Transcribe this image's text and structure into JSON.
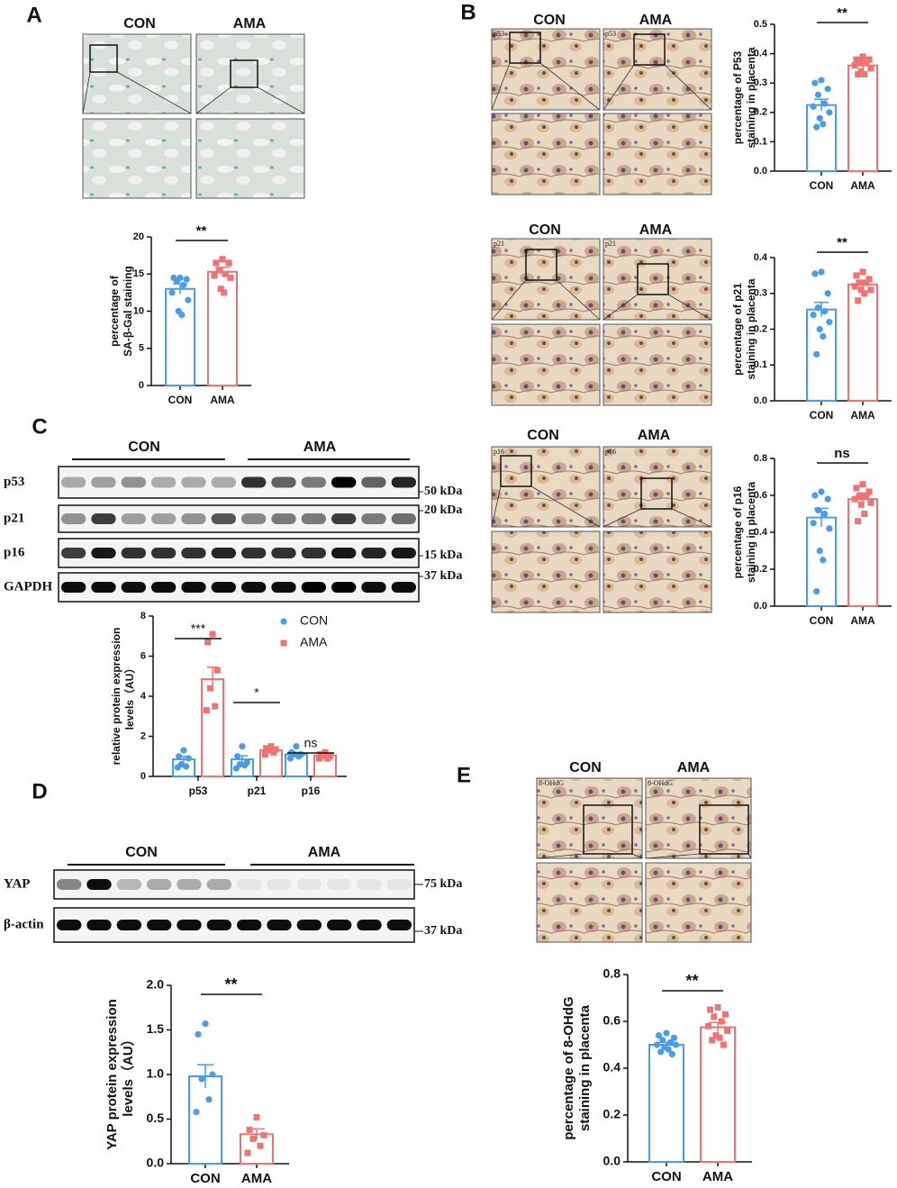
{
  "letters": [
    "A",
    "B",
    "C",
    "D",
    "E"
  ],
  "micrographs": [
    {
      "labels": [
        "CON",
        "AMA"
      ]
    },
    {
      "labels": [
        "CON",
        "AMA"
      ],
      "tag": "p53"
    },
    {
      "labels": [
        "CON",
        "AMA"
      ],
      "tag": "p21"
    },
    {
      "labels": [
        "CON",
        "AMA"
      ],
      "tag": "p16"
    },
    {
      "labels": [
        "CON",
        "AMA"
      ],
      "tag": "8-OHdG"
    }
  ],
  "blots": [
    {
      "groups": [
        "CON",
        "AMA"
      ],
      "rows": [
        {
          "label": "p53",
          "size": "50 kDa"
        },
        {
          "label": "p21",
          "size": "20 kDa"
        },
        {
          "label": "p16",
          "size": "15 kDa"
        },
        {
          "label": "GAPDH",
          "size": "37 kDa"
        }
      ]
    },
    {
      "groups": [
        "CON",
        "AMA"
      ],
      "rows": [
        {
          "label": "YAP",
          "size": "75 kDa"
        },
        {
          "label": "β-actin",
          "size": "37 kDa"
        }
      ]
    }
  ],
  "chart_data": [
    {
      "type": "bar",
      "ylabel": [
        "percentage of",
        "SA-β-Gal staining"
      ],
      "categories": [
        "CON",
        "AMA"
      ],
      "colors": [
        "#4a9be8",
        "#f07373"
      ],
      "values": [
        13.0,
        15.3
      ],
      "errors": [
        0.7,
        0.6
      ],
      "points": [
        [
          14.5,
          14.5,
          14.3,
          14.0,
          13.5,
          12.5,
          11.5,
          10.0,
          9.5
        ],
        [
          17.0,
          16.5,
          16.5,
          15.5,
          15.0,
          14.8,
          14.5,
          13.0,
          12.5
        ]
      ],
      "ylim": [
        0,
        20
      ],
      "yticks": [
        0,
        5,
        10,
        15,
        20
      ],
      "significance": "**"
    },
    {
      "type": "bar",
      "ylabel": [
        "percentage of P53",
        "staining in placenta"
      ],
      "categories": [
        "CON",
        "AMA"
      ],
      "colors": [
        "#4a9be8",
        "#f07373"
      ],
      "values": [
        0.225,
        0.36
      ],
      "errors": [
        0.02,
        0.01
      ],
      "points": [
        [
          0.31,
          0.3,
          0.28,
          0.26,
          0.23,
          0.22,
          0.2,
          0.18,
          0.16,
          0.15
        ],
        [
          0.39,
          0.38,
          0.38,
          0.37,
          0.37,
          0.36,
          0.35,
          0.34,
          0.33,
          0.33
        ]
      ],
      "ylim": [
        0,
        0.5
      ],
      "yticks": [
        {
          "value": 0,
          "label": "0.0"
        },
        0.1,
        0.2,
        0.3,
        0.4,
        0.5
      ],
      "significance": "**"
    },
    {
      "type": "bar",
      "ylabel": [
        "percentage of p21",
        "staining in placenta"
      ],
      "categories": [
        "CON",
        "AMA"
      ],
      "colors": [
        "#4a9be8",
        "#f07373"
      ],
      "values": [
        0.255,
        0.325
      ],
      "errors": [
        0.02,
        0.01
      ],
      "points": [
        [
          0.36,
          0.355,
          0.3,
          0.26,
          0.25,
          0.24,
          0.22,
          0.2,
          0.18,
          0.13
        ],
        [
          0.36,
          0.35,
          0.34,
          0.33,
          0.33,
          0.32,
          0.31,
          0.31,
          0.3,
          0.28
        ]
      ],
      "ylim": [
        0,
        0.4
      ],
      "yticks": [
        {
          "value": 0,
          "label": "0.0"
        },
        0.1,
        0.2,
        0.3,
        0.4
      ],
      "significance": "**"
    },
    {
      "type": "bar",
      "ylabel": [
        "percentage of p16",
        "staining in placenta"
      ],
      "categories": [
        "CON",
        "AMA"
      ],
      "colors": [
        "#4a9be8",
        "#f07373"
      ],
      "values": [
        0.48,
        0.58
      ],
      "errors": [
        0.05,
        0.02
      ],
      "points": [
        [
          0.62,
          0.6,
          0.58,
          0.52,
          0.5,
          0.45,
          0.42,
          0.3,
          0.25,
          0.08
        ],
        [
          0.66,
          0.64,
          0.62,
          0.6,
          0.6,
          0.58,
          0.56,
          0.55,
          0.5,
          0.46
        ]
      ],
      "ylim": [
        0,
        0.8
      ],
      "yticks": [
        {
          "value": 0,
          "label": "0.0"
        },
        0.2,
        0.4,
        0.6,
        0.8
      ],
      "significance": "ns"
    },
    {
      "type": "bar",
      "ylabel": [
        "relative protein expression",
        "levels（AU）"
      ],
      "categories": [
        "p53",
        "p21",
        "p16"
      ],
      "series": [
        {
          "name": "CON",
          "color": "#4a9be8",
          "values": [
            0.85,
            0.85,
            1.1
          ],
          "errors": [
            0.15,
            0.18,
            0.1
          ],
          "points": [
            [
              1.3,
              1.0,
              0.9,
              0.6,
              0.5,
              0.45
            ],
            [
              1.5,
              1.0,
              0.7,
              0.6,
              0.55,
              0.4
            ],
            [
              1.5,
              1.2,
              1.1,
              1.1,
              1.0,
              0.9
            ]
          ]
        },
        {
          "name": "AMA",
          "color": "#f07373",
          "values": [
            4.85,
            1.3,
            1.05
          ],
          "errors": [
            0.6,
            0.08,
            0.05
          ],
          "points": [
            [
              7.1,
              6.7,
              5.3,
              4.4,
              3.5,
              3.3
            ],
            [
              1.5,
              1.4,
              1.35,
              1.3,
              1.2,
              1.1
            ],
            [
              1.2,
              1.1,
              1.0,
              1.0,
              0.9,
              0.9
            ]
          ]
        }
      ],
      "ylim": [
        0,
        8
      ],
      "yticks": [
        0,
        2,
        4,
        6,
        8
      ],
      "significance": [
        "***",
        "*",
        "ns"
      ]
    },
    {
      "type": "bar",
      "ylabel": [
        "YAP protein expression",
        "levels（AU）"
      ],
      "categories": [
        "CON",
        "AMA"
      ],
      "colors": [
        "#4a9be8",
        "#f07373"
      ],
      "values": [
        0.98,
        0.33
      ],
      "errors": [
        0.13,
        0.06
      ],
      "points": [
        [
          1.57,
          1.45,
          1.0,
          0.95,
          0.72,
          0.58
        ],
        [
          0.52,
          0.38,
          0.32,
          0.28,
          0.2,
          0.12
        ]
      ],
      "ylim": [
        0,
        2
      ],
      "yticks": [
        {
          "value": 0,
          "label": "0.0"
        },
        0.5,
        {
          "value": 1,
          "label": "1.0"
        },
        1.5,
        {
          "value": 2,
          "label": "2.0"
        }
      ],
      "significance": "**"
    },
    {
      "type": "bar",
      "ylabel": [
        "percentage of 8-OHdG",
        "staining in placenta"
      ],
      "categories": [
        "CON",
        "AMA"
      ],
      "colors": [
        "#4a9be8",
        "#f07373"
      ],
      "values": [
        0.5,
        0.575
      ],
      "errors": [
        0.01,
        0.02
      ],
      "points": [
        [
          0.55,
          0.54,
          0.53,
          0.52,
          0.51,
          0.5,
          0.5,
          0.49,
          0.48,
          0.47,
          0.46
        ],
        [
          0.66,
          0.65,
          0.63,
          0.62,
          0.6,
          0.58,
          0.56,
          0.54,
          0.53,
          0.52,
          0.5
        ]
      ],
      "ylim": [
        0,
        0.8
      ],
      "yticks": [
        {
          "value": 0,
          "label": "0.0"
        },
        0.2,
        0.4,
        0.6,
        0.8
      ],
      "significance": "**"
    }
  ]
}
